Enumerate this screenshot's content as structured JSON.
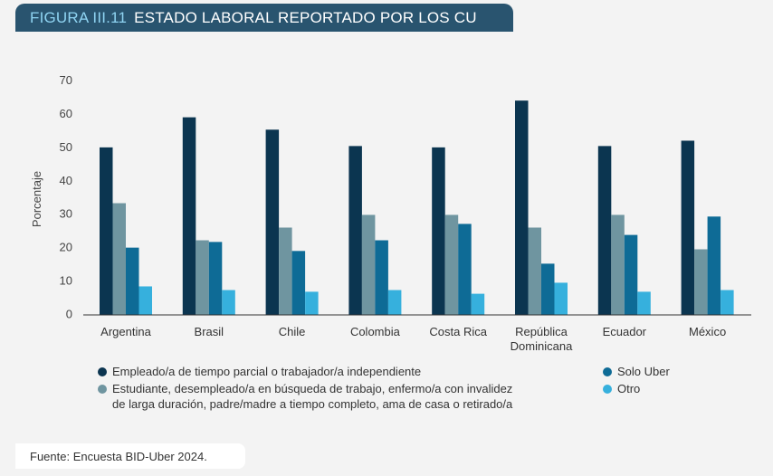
{
  "header": {
    "figure": "FIGURA III.11",
    "title": "ESTADO LABORAL REPORTADO POR LOS CU",
    "bg_color": "#29546f"
  },
  "chart_data": {
    "type": "bar",
    "title": "ESTADO LABORAL REPORTADO POR LOS CU",
    "ylabel": "Porcentaje",
    "xlabel": "",
    "ylim": [
      0,
      70
    ],
    "yticks": [
      0,
      10,
      20,
      30,
      40,
      50,
      60,
      70
    ],
    "grid": false,
    "legend_position": "bottom",
    "categories": [
      "Argentina",
      "Brasil",
      "Chile",
      "Colombia",
      "Costa Rica",
      "República Dominicana",
      "Ecuador",
      "México"
    ],
    "category_lines": [
      [
        "Argentina"
      ],
      [
        "Brasil"
      ],
      [
        "Chile"
      ],
      [
        "Colombia"
      ],
      [
        "Costa Rica"
      ],
      [
        "República",
        "Dominicana"
      ],
      [
        "Ecuador"
      ],
      [
        "México"
      ]
    ],
    "series": [
      {
        "name": "Empleado/a de tiempo parcial o trabajador/a independiente",
        "color": "#0b3550",
        "values": [
          50,
          59,
          55.3,
          50.4,
          50,
          64,
          50.4,
          52
        ]
      },
      {
        "name": "Estudiante, desempleado/a en búsqueda de trabajo, enfermo/a con invalidez de larga duración, padre/madre a tiempo completo, ama de casa o retirado/a",
        "legend_lines": [
          "Estudiante, desempleado/a en búsqueda de trabajo, enfermo/a con invalidez",
          "de larga duración, padre/madre a tiempo completo, ama de casa o retirado/a"
        ],
        "color": "#6f95a0",
        "values": [
          33.3,
          22.2,
          26,
          29.8,
          29.8,
          26,
          29.8,
          19.5
        ]
      },
      {
        "name": "Solo Uber",
        "color": "#0e6b96",
        "values": [
          20,
          21.7,
          19,
          22.2,
          27.1,
          15.2,
          23.8,
          29.3
        ]
      },
      {
        "name": "Otro",
        "color": "#36b0dd",
        "values": [
          8.4,
          7.3,
          6.8,
          7.3,
          6.2,
          9.5,
          6.8,
          7.3
        ]
      }
    ]
  },
  "source": "Fuente: Encuesta BID-Uber 2024."
}
